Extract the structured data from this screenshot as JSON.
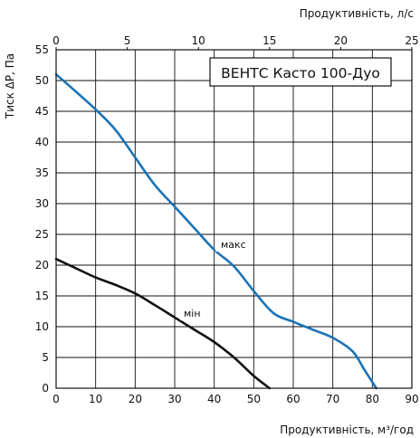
{
  "chart_data": {
    "type": "line",
    "title": "ВЕНТС Касто 100-Дуо",
    "xlabel": "Продуктивність, м³/год",
    "x2label": "Продуктивність, л/с",
    "ylabel": "Тиск ΔР, Па",
    "xlim": [
      0,
      90
    ],
    "x2lim": [
      0,
      25
    ],
    "ylim": [
      0,
      55
    ],
    "xticks": [
      0,
      10,
      20,
      30,
      40,
      50,
      60,
      70,
      80,
      90
    ],
    "x2ticks": [
      0,
      5,
      10,
      15,
      20,
      25
    ],
    "yticks": [
      0,
      5,
      10,
      15,
      20,
      25,
      30,
      35,
      40,
      45,
      50,
      55
    ],
    "grid": true,
    "series": [
      {
        "name": "макс",
        "color": "#1a73b8",
        "x": [
          0,
          5,
          10,
          15,
          20,
          25,
          30,
          35,
          40,
          45,
          50,
          55,
          60,
          65,
          70,
          75,
          78,
          81
        ],
        "y": [
          51,
          48.2,
          45.3,
          42,
          37.5,
          33,
          29.5,
          26,
          22.5,
          19.8,
          15.8,
          12.2,
          10.8,
          9.5,
          8.2,
          6,
          3,
          0
        ]
      },
      {
        "name": "мін",
        "color": "#111111",
        "x": [
          0,
          5,
          10,
          15,
          20,
          25,
          30,
          35,
          40,
          45,
          50,
          54
        ],
        "y": [
          21,
          19.5,
          18,
          16.8,
          15.4,
          13.5,
          11.5,
          9.5,
          7.5,
          5,
          2,
          0
        ]
      }
    ]
  }
}
